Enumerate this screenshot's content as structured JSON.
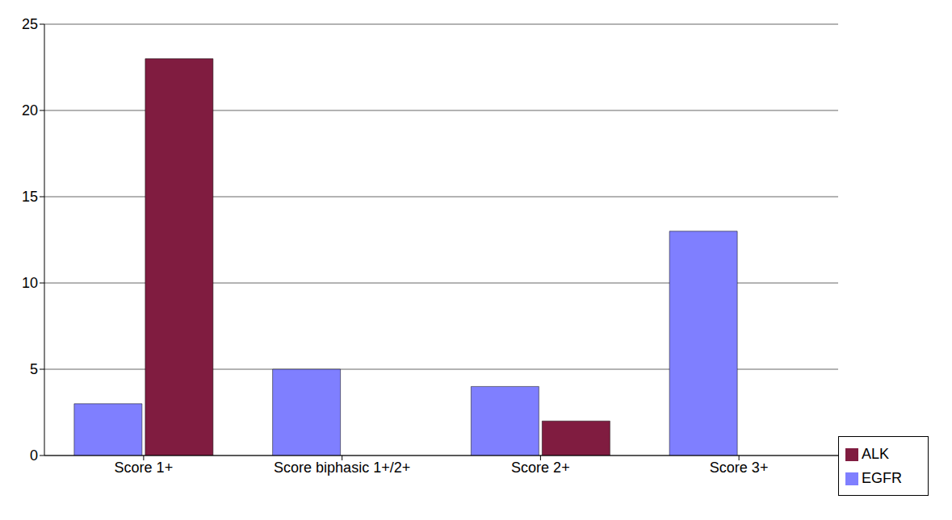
{
  "chart_data": {
    "type": "bar",
    "categories": [
      "Score 1+",
      "Score biphasic 1+/2+",
      "Score 2+",
      "Score 3+"
    ],
    "series": [
      {
        "name": "EGFR",
        "color": "#7f7fff",
        "values": [
          3,
          5,
          4,
          13
        ]
      },
      {
        "name": "ALK",
        "color": "#801c40",
        "values": [
          23,
          0,
          2,
          0
        ]
      }
    ],
    "ylim": [
      0,
      25
    ],
    "yticks": [
      0,
      5,
      10,
      15,
      20,
      25
    ],
    "grid": true,
    "legend": "right"
  }
}
